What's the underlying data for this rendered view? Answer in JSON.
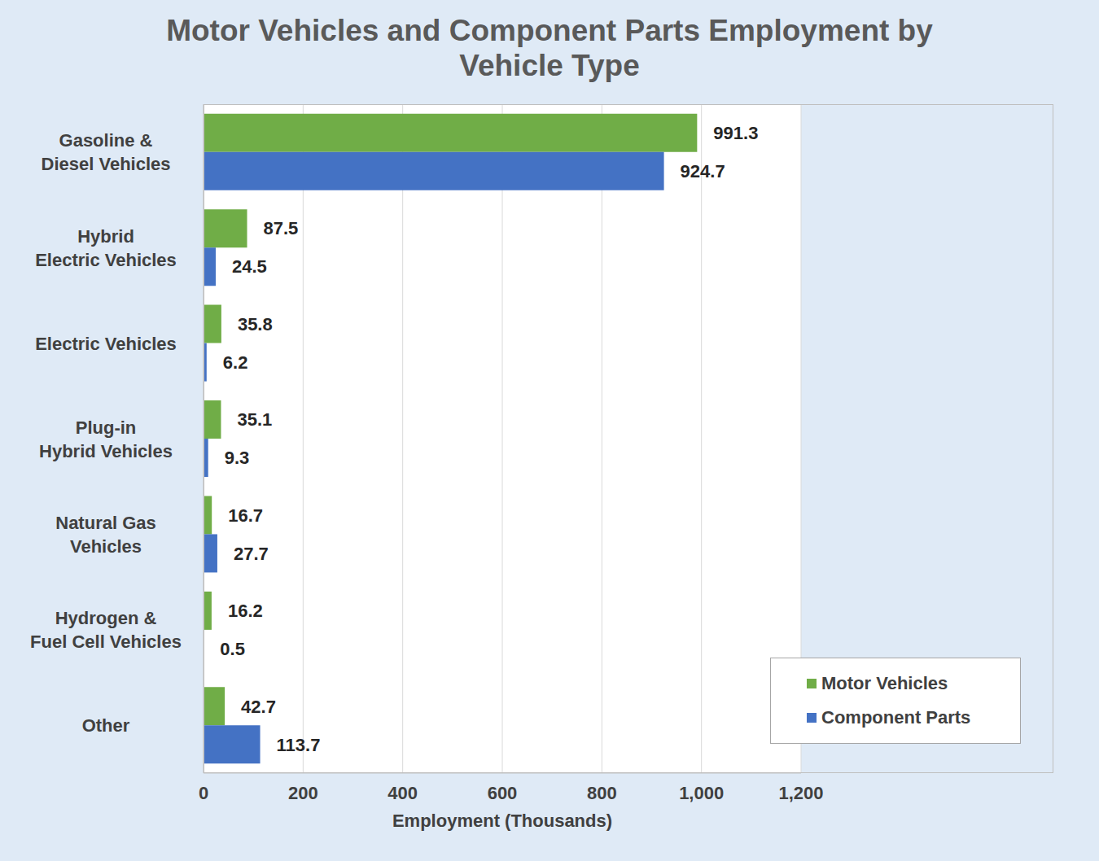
{
  "chart_data": {
    "type": "bar",
    "title": "Motor Vehicles and Component Parts Employment by Vehicle Type",
    "orientation": "horizontal",
    "categories": [
      "Gasoline &\nDiesel Vehicles",
      "Hybrid\nElectric Vehicles",
      "Electric Vehicles",
      "Plug-in\nHybrid Vehicles",
      "Natural Gas\nVehicles",
      "Hydrogen &\nFuel Cell Vehicles",
      "Other"
    ],
    "series": [
      {
        "name": "Motor Vehicles",
        "color": "#70ad47",
        "values": [
          991.3,
          87.5,
          35.8,
          35.1,
          16.7,
          16.2,
          42.7
        ]
      },
      {
        "name": "Component Parts",
        "color": "#4472c4",
        "values": [
          924.7,
          24.5,
          6.2,
          9.3,
          27.7,
          0.5,
          113.7
        ]
      }
    ],
    "x_label": "Employment (Thousands)",
    "xlim": [
      0,
      1200
    ],
    "xticks": [
      0,
      200,
      400,
      600,
      800,
      {
        "value": 1000,
        "label": "1,000"
      },
      {
        "value": 1200,
        "label": "1,200"
      }
    ],
    "grid": true,
    "legend": "lower right",
    "data_labels": true
  }
}
